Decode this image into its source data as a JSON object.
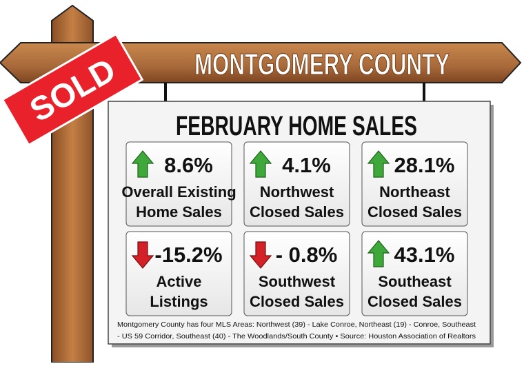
{
  "sign": {
    "title": "MONTGOMERY COUNTY",
    "badge": "SOLD"
  },
  "board": {
    "title": "FEBRUARY HOME SALES",
    "tiles": [
      {
        "direction": "up",
        "value": "8.6%",
        "label": [
          "Overall Existing",
          "Home Sales"
        ]
      },
      {
        "direction": "up",
        "value": "4.1%",
        "label": [
          "Northwest",
          "Closed Sales"
        ]
      },
      {
        "direction": "up",
        "value": "28.1%",
        "label": [
          "Northeast",
          "Closed Sales"
        ]
      },
      {
        "direction": "down",
        "value": "-15.2%",
        "label": [
          "Active",
          "Listings"
        ]
      },
      {
        "direction": "down",
        "value": "- 0.8%",
        "label": [
          "Southwest",
          "Closed Sales"
        ]
      },
      {
        "direction": "up",
        "value": "43.1%",
        "label": [
          "Southeast",
          "Closed Sales"
        ]
      }
    ],
    "footnote": [
      "Montgomery County has four MLS Areas: Northwest (39) - Lake Conroe, Northeast (19) - Conroe, Southeast",
      "- US 59 Corridor, Southeast (40) - The Woodlands/South County • Source: Houston Association of Realtors"
    ]
  }
}
